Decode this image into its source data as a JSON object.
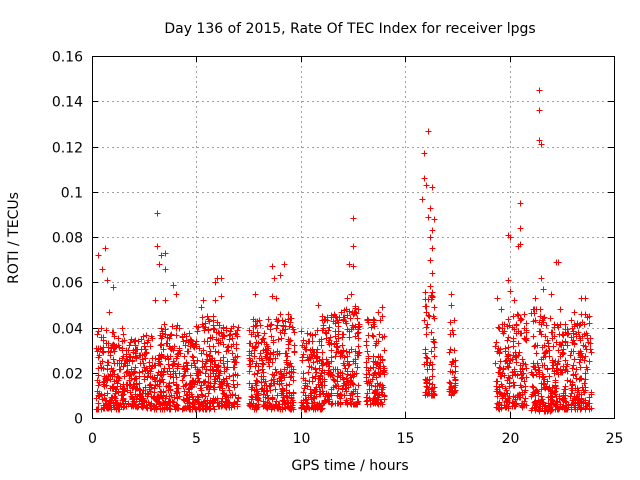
{
  "chart_data": {
    "type": "scatter",
    "title": "Day 136 of 2015, Rate Of TEC Index for receiver lpgs",
    "xlabel": "GPS time / hours",
    "ylabel": "ROTI / TECUs",
    "xlim": [
      0,
      25
    ],
    "ylim": [
      0,
      0.16
    ],
    "x_ticks": [
      0,
      5,
      10,
      15,
      20,
      25
    ],
    "y_ticks": [
      0,
      0.02,
      0.04,
      0.06,
      0.08,
      0.1,
      0.12,
      0.14,
      0.16
    ],
    "x_tick_labels": [
      "0",
      "5",
      "10",
      "15",
      "20",
      "25"
    ],
    "y_tick_labels": [
      "0",
      "0.02",
      "0.04",
      "0.06",
      "0.08",
      "0.1",
      "0.12",
      "0.14",
      "0.16"
    ],
    "grid": true,
    "marker": "+",
    "color": "#ff0000",
    "series": [
      {
        "name": "ROTI",
        "notable_points": [
          {
            "x": 0.3,
            "y": 0.072
          },
          {
            "x": 0.5,
            "y": 0.066
          },
          {
            "x": 0.6,
            "y": 0.075
          },
          {
            "x": 0.7,
            "y": 0.061
          },
          {
            "x": 1.0,
            "y": 0.058
          },
          {
            "x": 0.8,
            "y": 0.047
          },
          {
            "x": 3.1,
            "y": 0.0905
          },
          {
            "x": 3.1,
            "y": 0.076
          },
          {
            "x": 3.3,
            "y": 0.072
          },
          {
            "x": 3.5,
            "y": 0.073
          },
          {
            "x": 3.2,
            "y": 0.068
          },
          {
            "x": 3.5,
            "y": 0.066
          },
          {
            "x": 3.0,
            "y": 0.052
          },
          {
            "x": 3.5,
            "y": 0.052
          },
          {
            "x": 3.9,
            "y": 0.059
          },
          {
            "x": 4.0,
            "y": 0.055
          },
          {
            "x": 5.2,
            "y": 0.049
          },
          {
            "x": 5.3,
            "y": 0.052
          },
          {
            "x": 5.5,
            "y": 0.045
          },
          {
            "x": 5.8,
            "y": 0.045
          },
          {
            "x": 5.9,
            "y": 0.052
          },
          {
            "x": 5.9,
            "y": 0.06
          },
          {
            "x": 6.0,
            "y": 0.062
          },
          {
            "x": 6.2,
            "y": 0.062
          },
          {
            "x": 6.2,
            "y": 0.054
          },
          {
            "x": 8.6,
            "y": 0.067
          },
          {
            "x": 8.7,
            "y": 0.062
          },
          {
            "x": 9.0,
            "y": 0.063
          },
          {
            "x": 9.2,
            "y": 0.068
          },
          {
            "x": 8.6,
            "y": 0.054
          },
          {
            "x": 8.8,
            "y": 0.053
          },
          {
            "x": 7.8,
            "y": 0.055
          },
          {
            "x": 9.0,
            "y": 0.046
          },
          {
            "x": 9.4,
            "y": 0.046
          },
          {
            "x": 10.8,
            "y": 0.05
          },
          {
            "x": 11.6,
            "y": 0.046
          },
          {
            "x": 12.2,
            "y": 0.053
          },
          {
            "x": 12.5,
            "y": 0.0885
          },
          {
            "x": 12.5,
            "y": 0.076
          },
          {
            "x": 12.3,
            "y": 0.068
          },
          {
            "x": 12.5,
            "y": 0.067
          },
          {
            "x": 12.4,
            "y": 0.055
          },
          {
            "x": 12.7,
            "y": 0.044
          },
          {
            "x": 13.7,
            "y": 0.047
          },
          {
            "x": 13.9,
            "y": 0.049
          },
          {
            "x": 16.1,
            "y": 0.127
          },
          {
            "x": 15.9,
            "y": 0.117
          },
          {
            "x": 15.9,
            "y": 0.106
          },
          {
            "x": 16.0,
            "y": 0.103
          },
          {
            "x": 16.3,
            "y": 0.102
          },
          {
            "x": 15.8,
            "y": 0.097
          },
          {
            "x": 16.2,
            "y": 0.093
          },
          {
            "x": 16.1,
            "y": 0.089
          },
          {
            "x": 16.4,
            "y": 0.088
          },
          {
            "x": 16.3,
            "y": 0.083
          },
          {
            "x": 16.2,
            "y": 0.08
          },
          {
            "x": 16.3,
            "y": 0.075
          },
          {
            "x": 16.2,
            "y": 0.07
          },
          {
            "x": 16.3,
            "y": 0.064
          },
          {
            "x": 17.2,
            "y": 0.055
          },
          {
            "x": 17.2,
            "y": 0.05
          },
          {
            "x": 19.4,
            "y": 0.053
          },
          {
            "x": 19.6,
            "y": 0.048
          },
          {
            "x": 19.9,
            "y": 0.081
          },
          {
            "x": 20.0,
            "y": 0.08
          },
          {
            "x": 19.9,
            "y": 0.061
          },
          {
            "x": 20.0,
            "y": 0.056
          },
          {
            "x": 20.2,
            "y": 0.052
          },
          {
            "x": 20.5,
            "y": 0.095
          },
          {
            "x": 20.5,
            "y": 0.084
          },
          {
            "x": 20.5,
            "y": 0.077
          },
          {
            "x": 20.4,
            "y": 0.076
          },
          {
            "x": 21.4,
            "y": 0.145
          },
          {
            "x": 21.4,
            "y": 0.136
          },
          {
            "x": 21.4,
            "y": 0.123
          },
          {
            "x": 21.5,
            "y": 0.121
          },
          {
            "x": 21.5,
            "y": 0.062
          },
          {
            "x": 21.6,
            "y": 0.057
          },
          {
            "x": 22.3,
            "y": 0.069
          },
          {
            "x": 22.2,
            "y": 0.069
          },
          {
            "x": 21.2,
            "y": 0.053
          },
          {
            "x": 22.0,
            "y": 0.055
          },
          {
            "x": 22.4,
            "y": 0.048
          },
          {
            "x": 23.1,
            "y": 0.047
          },
          {
            "x": 23.4,
            "y": 0.053
          },
          {
            "x": 23.6,
            "y": 0.053
          },
          {
            "x": 23.4,
            "y": 0.046
          },
          {
            "x": 23.6,
            "y": 0.046
          }
        ],
        "dense_band_segments": [
          {
            "x_start": 0.2,
            "x_end": 1.5,
            "y_min": 0.004,
            "y_max": 0.04
          },
          {
            "x_start": 1.5,
            "x_end": 2.4,
            "y_min": 0.005,
            "y_max": 0.036
          },
          {
            "x_start": 2.4,
            "x_end": 3.3,
            "y_min": 0.004,
            "y_max": 0.038
          },
          {
            "x_start": 3.3,
            "x_end": 4.2,
            "y_min": 0.004,
            "y_max": 0.042
          },
          {
            "x_start": 4.3,
            "x_end": 5.0,
            "y_min": 0.004,
            "y_max": 0.038
          },
          {
            "x_start": 5.0,
            "x_end": 6.0,
            "y_min": 0.004,
            "y_max": 0.045
          },
          {
            "x_start": 6.0,
            "x_end": 7.0,
            "y_min": 0.005,
            "y_max": 0.042
          },
          {
            "x_start": 7.5,
            "x_end": 8.5,
            "y_min": 0.004,
            "y_max": 0.044
          },
          {
            "x_start": 8.5,
            "x_end": 9.7,
            "y_min": 0.004,
            "y_max": 0.045
          },
          {
            "x_start": 10.0,
            "x_end": 11.0,
            "y_min": 0.004,
            "y_max": 0.04
          },
          {
            "x_start": 11.0,
            "x_end": 11.9,
            "y_min": 0.006,
            "y_max": 0.046
          },
          {
            "x_start": 11.9,
            "x_end": 12.8,
            "y_min": 0.006,
            "y_max": 0.05
          },
          {
            "x_start": 13.1,
            "x_end": 14.0,
            "y_min": 0.006,
            "y_max": 0.045
          },
          {
            "x_start": 15.9,
            "x_end": 16.4,
            "y_min": 0.01,
            "y_max": 0.06
          },
          {
            "x_start": 17.1,
            "x_end": 17.4,
            "y_min": 0.01,
            "y_max": 0.045
          },
          {
            "x_start": 19.3,
            "x_end": 20.0,
            "y_min": 0.004,
            "y_max": 0.044
          },
          {
            "x_start": 20.1,
            "x_end": 20.8,
            "y_min": 0.005,
            "y_max": 0.046
          },
          {
            "x_start": 21.0,
            "x_end": 22.0,
            "y_min": 0.003,
            "y_max": 0.05
          },
          {
            "x_start": 22.0,
            "x_end": 22.8,
            "y_min": 0.004,
            "y_max": 0.042
          },
          {
            "x_start": 22.9,
            "x_end": 23.9,
            "y_min": 0.004,
            "y_max": 0.045
          }
        ]
      }
    ]
  }
}
